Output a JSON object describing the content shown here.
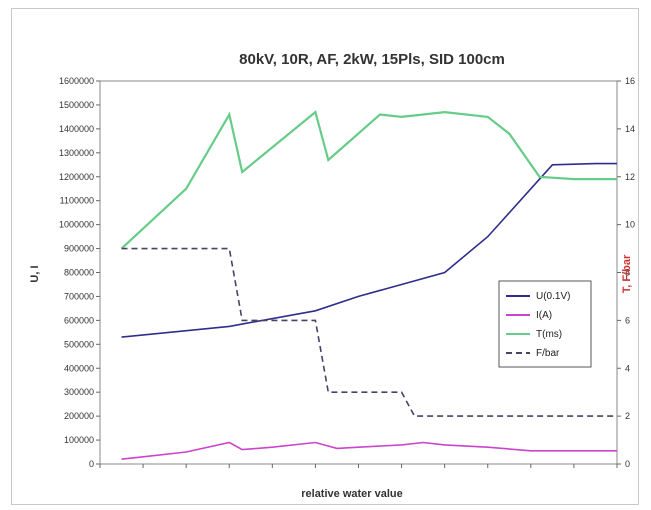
{
  "chart_data": {
    "type": "line",
    "title": "80kV, 10R, AF, 2kW, 15Pls, SID 100cm",
    "xlabel": "relative water value",
    "ylabel_left": "U, I",
    "ylabel_right": "T, F/bar",
    "y_left_ticks": [
      "0",
      "100000",
      "200000",
      "300000",
      "400000",
      "500000",
      "600000",
      "700000",
      "800000",
      "900000",
      "1000000",
      "1100000",
      "1200000",
      "1300000",
      "1400000",
      "1500000",
      "1600000"
    ],
    "y_left_lim": [
      0,
      1600000
    ],
    "y_right_ticks": [
      "0",
      "2",
      "4",
      "6",
      "8",
      "10",
      "12",
      "14",
      "16"
    ],
    "y_right_lim": [
      0,
      16
    ],
    "x_lim": [
      0,
      12
    ],
    "legend_position": "right",
    "series": [
      {
        "name": "U(0.1V)",
        "axis": "left",
        "color": "#2e2e8c",
        "dash": "solid",
        "x": [
          0.5,
          3,
          5,
          6,
          8,
          9,
          10.5,
          11.5,
          12
        ],
        "y": [
          530000,
          575000,
          640000,
          700000,
          800000,
          950000,
          1250000,
          1255000,
          1255000
        ]
      },
      {
        "name": "I(A)",
        "axis": "left",
        "color": "#cc44cc",
        "dash": "solid",
        "x": [
          0.5,
          1,
          2,
          3,
          3.3,
          4,
          5,
          5.5,
          6,
          7,
          7.5,
          8,
          9,
          10,
          11,
          12
        ],
        "y": [
          20000,
          30000,
          50000,
          90000,
          60000,
          70000,
          90000,
          65000,
          70000,
          80000,
          90000,
          80000,
          70000,
          55000,
          55000,
          55000
        ]
      },
      {
        "name": "T(ms)",
        "axis": "right",
        "color": "#66cc88",
        "dash": "solid",
        "x": [
          0.5,
          2,
          3,
          3.3,
          5,
          5.3,
          6.5,
          7,
          8,
          9,
          9.5,
          10.2,
          11,
          12
        ],
        "y": [
          9,
          11.5,
          14.6,
          12.2,
          14.7,
          12.7,
          14.6,
          14.5,
          14.7,
          14.5,
          13.8,
          12,
          11.9,
          11.9
        ]
      },
      {
        "name": "F/bar",
        "axis": "right",
        "color": "#444466",
        "dash": "dashed",
        "x": [
          0.5,
          3,
          3.3,
          5,
          5.3,
          7,
          7.3,
          12
        ],
        "y": [
          9,
          9,
          6,
          6,
          3,
          3,
          2,
          2
        ]
      }
    ]
  }
}
